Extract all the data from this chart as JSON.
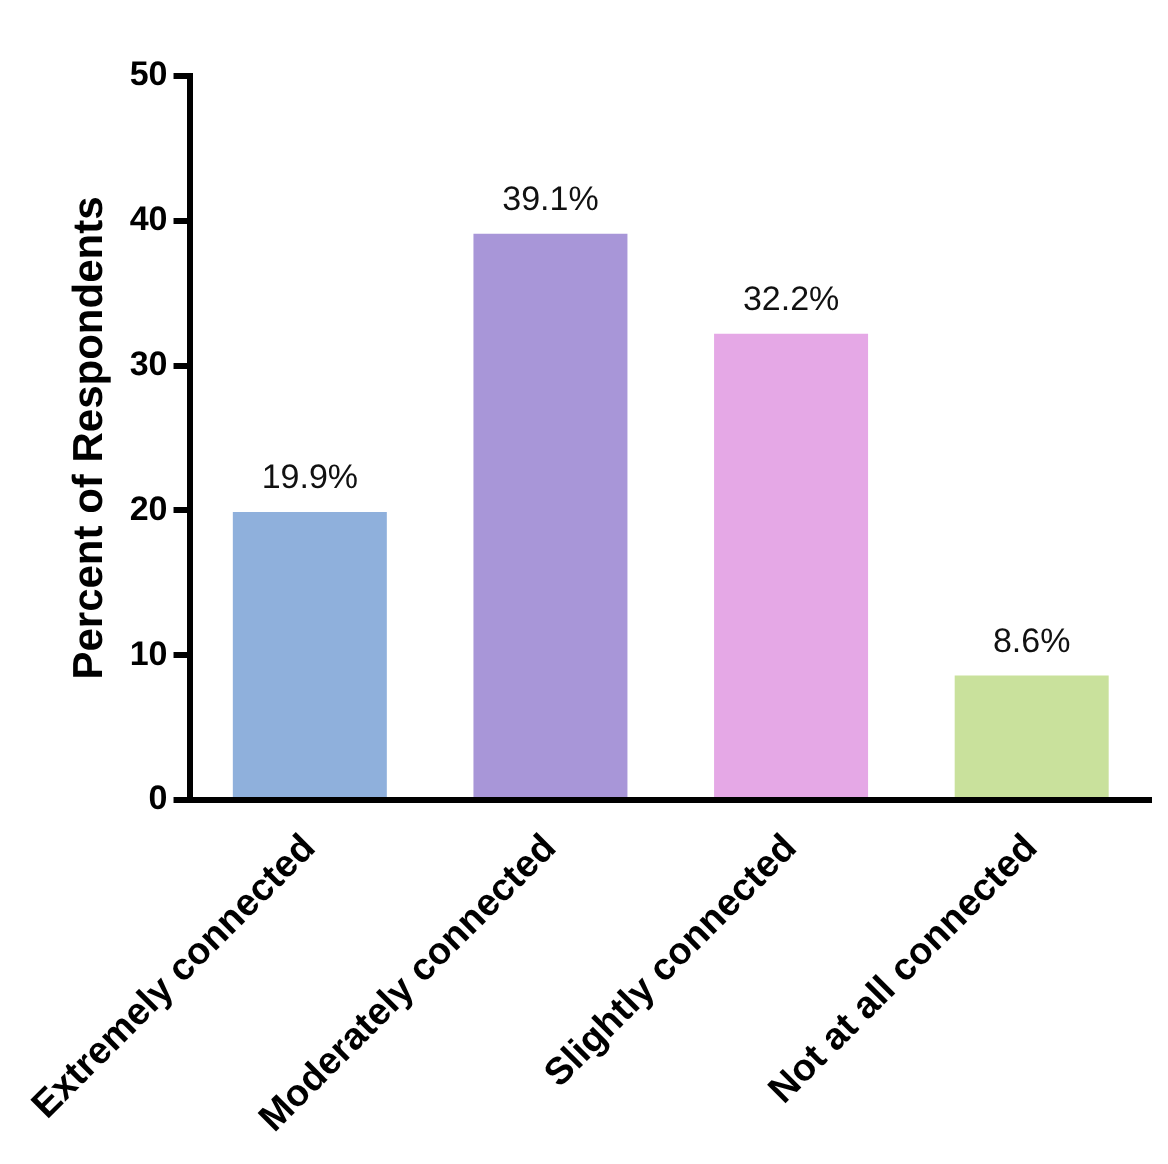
{
  "chart_data": {
    "type": "bar",
    "ylabel": "Percent of Respondents",
    "categories": [
      "Extremely connected",
      "Moderately connected",
      "Slightly connected",
      "Not at all connected"
    ],
    "values": [
      19.9,
      39.1,
      32.2,
      8.6
    ],
    "colors": [
      "#8fb0dc",
      "#a896d8",
      "#e5a8e6",
      "#c9e19c"
    ],
    "value_labels": [
      "19.9%",
      "39.1%",
      "32.2%",
      "8.6%"
    ],
    "ylim": [
      0,
      50
    ],
    "yticks": [
      0,
      10,
      20,
      30,
      40,
      50
    ],
    "grid": false,
    "legend": false
  }
}
